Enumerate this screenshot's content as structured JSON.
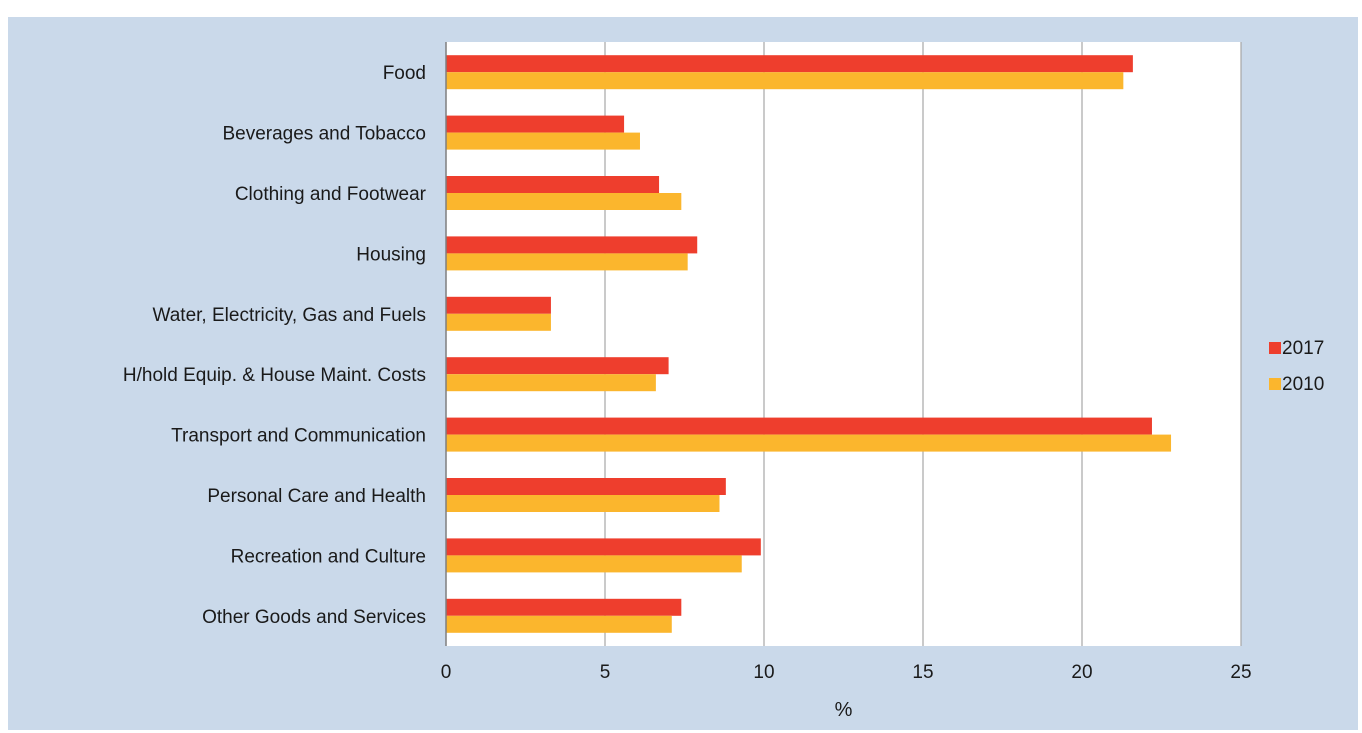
{
  "chart_data": {
    "type": "bar",
    "orientation": "horizontal",
    "categories": [
      "Food",
      "Beverages and Tobacco",
      "Clothing and Footwear",
      "Housing",
      "Water, Electricity, Gas and Fuels",
      "H/hold Equip. & House Maint. Costs",
      "Transport and Communication",
      "Personal Care and Health",
      "Recreation and Culture",
      "Other Goods and Services"
    ],
    "series": [
      {
        "name": "2017",
        "color": "#ee3e2d",
        "values": [
          21.6,
          5.6,
          6.7,
          7.9,
          3.3,
          7.0,
          22.2,
          8.8,
          9.9,
          7.4
        ]
      },
      {
        "name": "2010",
        "color": "#fbb62d",
        "values": [
          21.3,
          6.1,
          7.4,
          7.6,
          3.3,
          6.6,
          22.8,
          8.6,
          9.3,
          7.1
        ]
      }
    ],
    "title": "",
    "xlabel": "%",
    "ylabel": "",
    "xlim": [
      0,
      25
    ],
    "xticks": [
      0,
      5,
      10,
      15,
      20,
      25
    ],
    "grid": "vertical",
    "legend_placement": "right"
  }
}
